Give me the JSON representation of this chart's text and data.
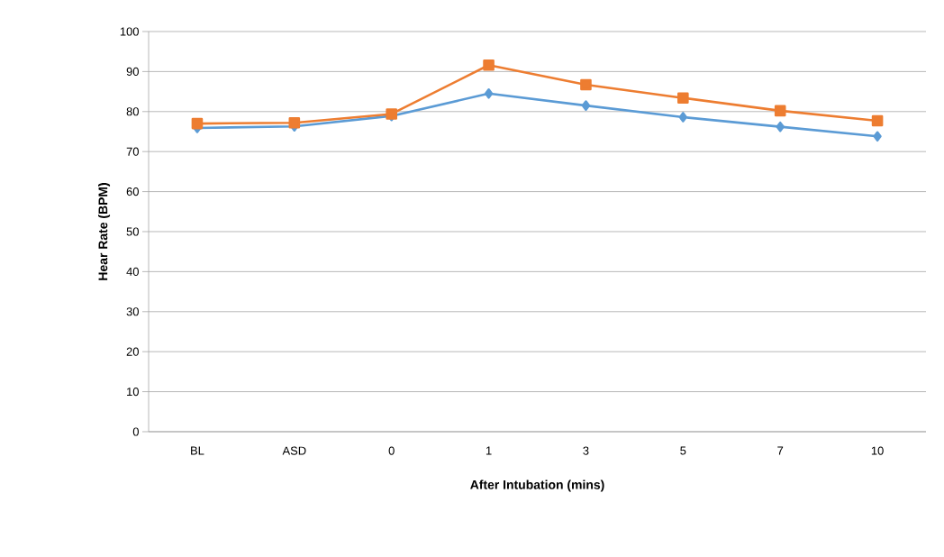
{
  "chart_data": {
    "type": "line",
    "xlabel": "After Intubation (mins)",
    "ylabel": "Hear Rate (BPM)",
    "categories": [
      "BL",
      "ASD",
      "0",
      "1",
      "3",
      "5",
      "7",
      "10"
    ],
    "series": [
      {
        "color": "#5b9bd5",
        "marker": "diamond",
        "values": [
          75.9,
          76.3,
          78.9,
          84.5,
          81.5,
          78.6,
          76.2,
          73.8
        ]
      },
      {
        "color": "#ed7d31",
        "marker": "square",
        "values": [
          77.0,
          77.2,
          79.4,
          91.6,
          86.7,
          83.4,
          80.2,
          77.7
        ]
      }
    ],
    "ylim": [
      0,
      100
    ],
    "yticks": [
      0,
      10,
      20,
      30,
      40,
      50,
      60,
      70,
      80,
      90,
      100
    ],
    "grid": "y"
  }
}
